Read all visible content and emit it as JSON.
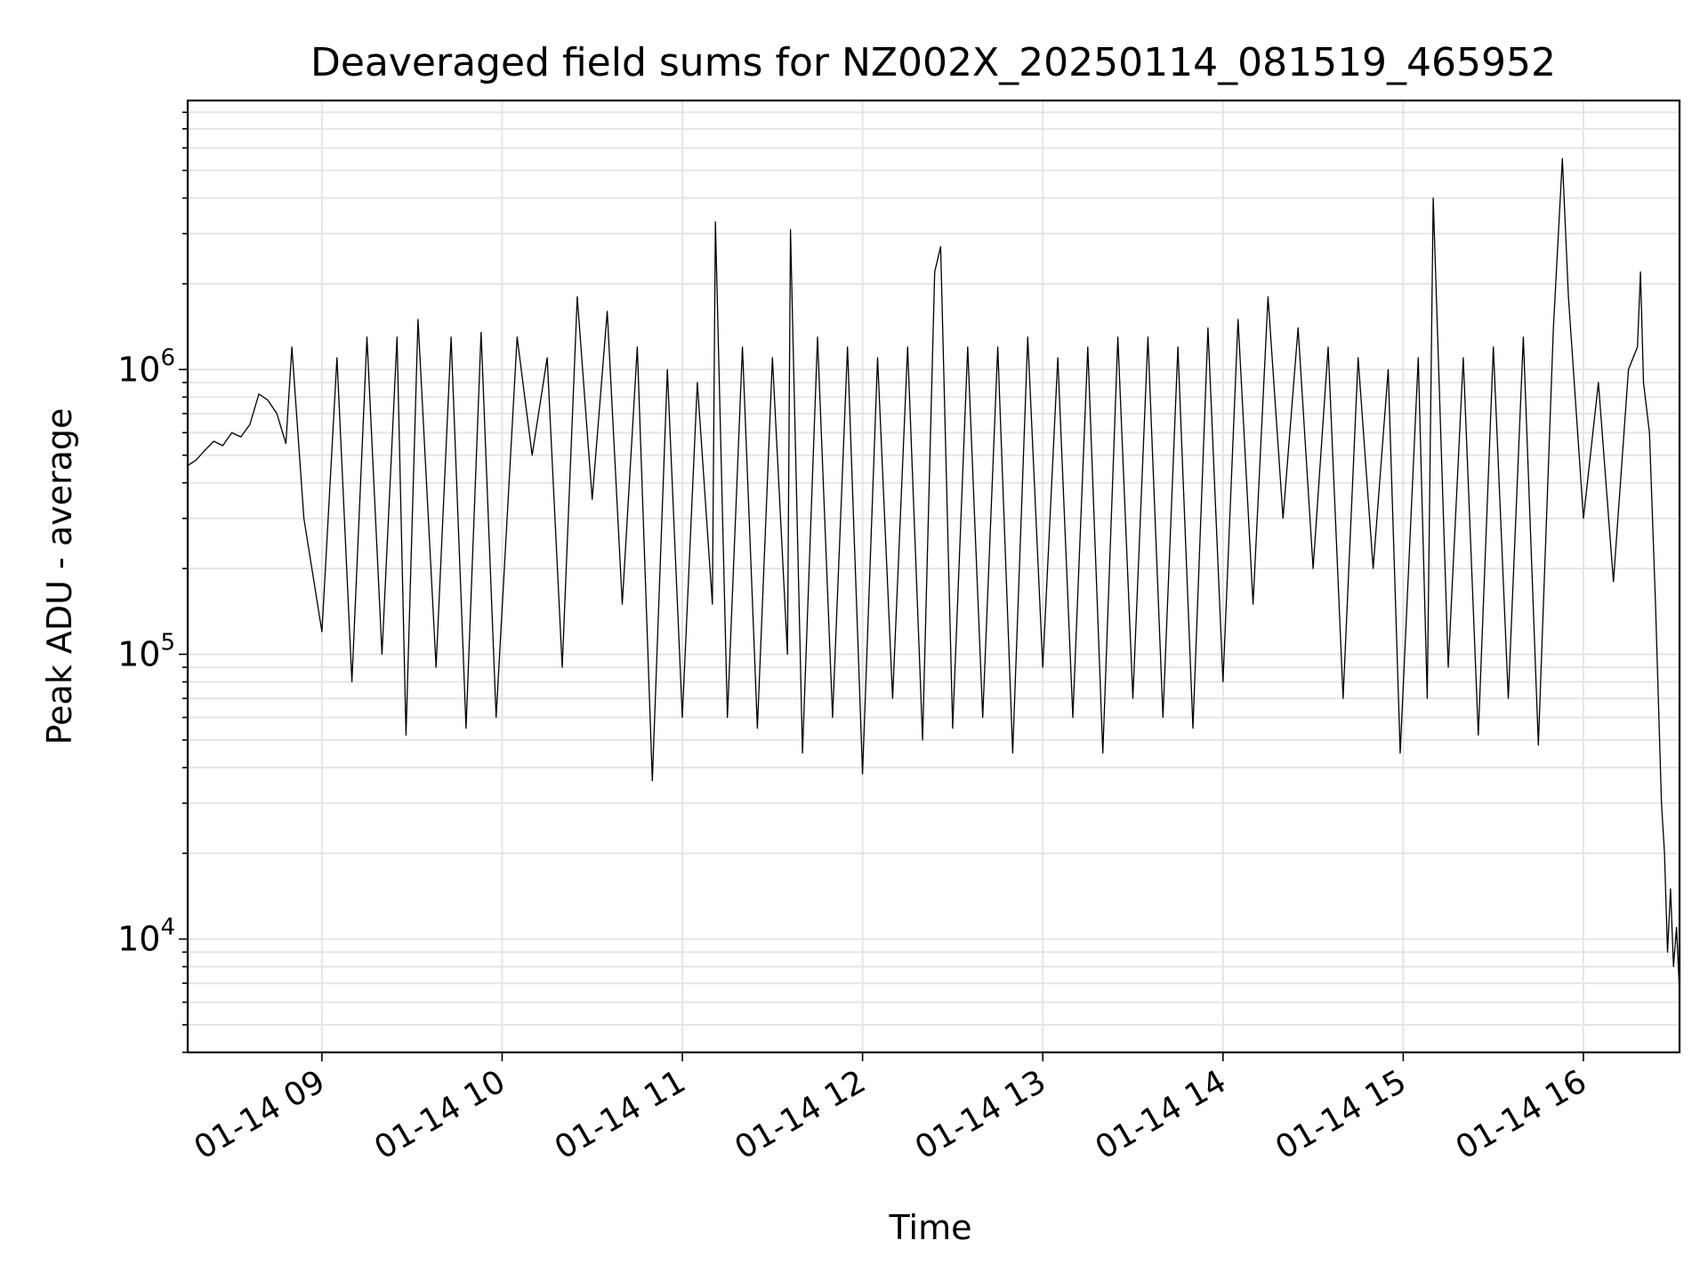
{
  "chart_data": {
    "type": "line",
    "title": "Deaveraged field sums for NZ002X_20250114_081519_465952",
    "xlabel": "Time",
    "ylabel": "Peak ADU - average",
    "yscale": "log",
    "ylim": [
      4000,
      8800000
    ],
    "xlim": [
      "2025-01-14 08:15:19",
      "2025-01-14 16:32:00"
    ],
    "grid": true,
    "line_color": "#000000",
    "grid_color": "#e5e5e5",
    "x_ticks": [
      "2025-01-14 09:00",
      "2025-01-14 10:00",
      "2025-01-14 11:00",
      "2025-01-14 12:00",
      "2025-01-14 13:00",
      "2025-01-14 14:00",
      "2025-01-14 15:00",
      "2025-01-14 16:00"
    ],
    "x_tick_labels": [
      "01-14 09",
      "01-14 10",
      "01-14 11",
      "01-14 12",
      "01-14 13",
      "01-14 14",
      "01-14 15",
      "01-14 16"
    ],
    "y_ticks": [
      10000,
      100000,
      1000000
    ],
    "y_tick_labels": [
      {
        "base": "10",
        "exp": "4"
      },
      {
        "base": "10",
        "exp": "5"
      },
      {
        "base": "10",
        "exp": "6"
      }
    ],
    "series": [
      {
        "points": [
          [
            "2025-01-14 08:15:19",
            460000
          ],
          [
            "2025-01-14 08:18",
            480000
          ],
          [
            "2025-01-14 08:21",
            520000
          ],
          [
            "2025-01-14 08:24",
            560000
          ],
          [
            "2025-01-14 08:27",
            540000
          ],
          [
            "2025-01-14 08:30",
            600000
          ],
          [
            "2025-01-14 08:33",
            580000
          ],
          [
            "2025-01-14 08:36",
            640000
          ],
          [
            "2025-01-14 08:39",
            820000
          ],
          [
            "2025-01-14 08:42",
            780000
          ],
          [
            "2025-01-14 08:45",
            700000
          ],
          [
            "2025-01-14 08:48",
            550000
          ],
          [
            "2025-01-14 08:50",
            1200000
          ],
          [
            "2025-01-14 08:54",
            300000
          ],
          [
            "2025-01-14 09:00",
            120000
          ],
          [
            "2025-01-14 09:05",
            1100000
          ],
          [
            "2025-01-14 09:10",
            80000
          ],
          [
            "2025-01-14 09:15",
            1300000
          ],
          [
            "2025-01-14 09:20",
            100000
          ],
          [
            "2025-01-14 09:25",
            1300000
          ],
          [
            "2025-01-14 09:28",
            52000
          ],
          [
            "2025-01-14 09:32",
            1500000
          ],
          [
            "2025-01-14 09:38",
            90000
          ],
          [
            "2025-01-14 09:43",
            1300000
          ],
          [
            "2025-01-14 09:48",
            55000
          ],
          [
            "2025-01-14 09:53",
            1350000
          ],
          [
            "2025-01-14 09:58",
            60000
          ],
          [
            "2025-01-14 10:05",
            1300000
          ],
          [
            "2025-01-14 10:10",
            500000
          ],
          [
            "2025-01-14 10:15",
            1100000
          ],
          [
            "2025-01-14 10:20",
            90000
          ],
          [
            "2025-01-14 10:25",
            1800000
          ],
          [
            "2025-01-14 10:30",
            350000
          ],
          [
            "2025-01-14 10:35",
            1600000
          ],
          [
            "2025-01-14 10:40",
            150000
          ],
          [
            "2025-01-14 10:45",
            1200000
          ],
          [
            "2025-01-14 10:50",
            36000
          ],
          [
            "2025-01-14 10:55",
            1000000
          ],
          [
            "2025-01-14 11:00",
            60000
          ],
          [
            "2025-01-14 11:05",
            900000
          ],
          [
            "2025-01-14 11:10",
            150000
          ],
          [
            "2025-01-14 11:11",
            3300000
          ],
          [
            "2025-01-14 11:15",
            60000
          ],
          [
            "2025-01-14 11:20",
            1200000
          ],
          [
            "2025-01-14 11:25",
            55000
          ],
          [
            "2025-01-14 11:30",
            1100000
          ],
          [
            "2025-01-14 11:35",
            100000
          ],
          [
            "2025-01-14 11:36",
            3100000
          ],
          [
            "2025-01-14 11:40",
            45000
          ],
          [
            "2025-01-14 11:45",
            1300000
          ],
          [
            "2025-01-14 11:50",
            60000
          ],
          [
            "2025-01-14 11:55",
            1200000
          ],
          [
            "2025-01-14 12:00",
            38000
          ],
          [
            "2025-01-14 12:05",
            1100000
          ],
          [
            "2025-01-14 12:10",
            70000
          ],
          [
            "2025-01-14 12:15",
            1200000
          ],
          [
            "2025-01-14 12:20",
            50000
          ],
          [
            "2025-01-14 12:24",
            2200000
          ],
          [
            "2025-01-14 12:26",
            2700000
          ],
          [
            "2025-01-14 12:30",
            55000
          ],
          [
            "2025-01-14 12:35",
            1200000
          ],
          [
            "2025-01-14 12:40",
            60000
          ],
          [
            "2025-01-14 12:45",
            1200000
          ],
          [
            "2025-01-14 12:50",
            45000
          ],
          [
            "2025-01-14 12:55",
            1300000
          ],
          [
            "2025-01-14 13:00",
            90000
          ],
          [
            "2025-01-14 13:05",
            1100000
          ],
          [
            "2025-01-14 13:10",
            60000
          ],
          [
            "2025-01-14 13:15",
            1200000
          ],
          [
            "2025-01-14 13:20",
            45000
          ],
          [
            "2025-01-14 13:25",
            1300000
          ],
          [
            "2025-01-14 13:30",
            70000
          ],
          [
            "2025-01-14 13:35",
            1300000
          ],
          [
            "2025-01-14 13:40",
            60000
          ],
          [
            "2025-01-14 13:45",
            1200000
          ],
          [
            "2025-01-14 13:50",
            55000
          ],
          [
            "2025-01-14 13:55",
            1400000
          ],
          [
            "2025-01-14 14:00",
            80000
          ],
          [
            "2025-01-14 14:05",
            1500000
          ],
          [
            "2025-01-14 14:10",
            150000
          ],
          [
            "2025-01-14 14:15",
            1800000
          ],
          [
            "2025-01-14 14:20",
            300000
          ],
          [
            "2025-01-14 14:25",
            1400000
          ],
          [
            "2025-01-14 14:30",
            200000
          ],
          [
            "2025-01-14 14:35",
            1200000
          ],
          [
            "2025-01-14 14:40",
            70000
          ],
          [
            "2025-01-14 14:45",
            1100000
          ],
          [
            "2025-01-14 14:50",
            200000
          ],
          [
            "2025-01-14 14:55",
            1000000
          ],
          [
            "2025-01-14 14:59",
            45000
          ],
          [
            "2025-01-14 15:05",
            1100000
          ],
          [
            "2025-01-14 15:08",
            70000
          ],
          [
            "2025-01-14 15:10",
            4000000
          ],
          [
            "2025-01-14 15:15",
            90000
          ],
          [
            "2025-01-14 15:20",
            1100000
          ],
          [
            "2025-01-14 15:25",
            52000
          ],
          [
            "2025-01-14 15:30",
            1200000
          ],
          [
            "2025-01-14 15:35",
            70000
          ],
          [
            "2025-01-14 15:40",
            1300000
          ],
          [
            "2025-01-14 15:45",
            48000
          ],
          [
            "2025-01-14 15:50",
            1400000
          ],
          [
            "2025-01-14 15:53",
            5500000
          ],
          [
            "2025-01-14 15:55",
            1800000
          ],
          [
            "2025-01-14 16:00",
            300000
          ],
          [
            "2025-01-14 16:05",
            900000
          ],
          [
            "2025-01-14 16:10",
            180000
          ],
          [
            "2025-01-14 16:15",
            1000000
          ],
          [
            "2025-01-14 16:18",
            1200000
          ],
          [
            "2025-01-14 16:19",
            2200000
          ],
          [
            "2025-01-14 16:20",
            900000
          ],
          [
            "2025-01-14 16:22",
            600000
          ],
          [
            "2025-01-14 16:24",
            150000
          ],
          [
            "2025-01-14 16:26",
            30000
          ],
          [
            "2025-01-14 16:27",
            20000
          ],
          [
            "2025-01-14 16:28",
            9000
          ],
          [
            "2025-01-14 16:29",
            15000
          ],
          [
            "2025-01-14 16:30",
            8000
          ],
          [
            "2025-01-14 16:31",
            11000
          ],
          [
            "2025-01-14 16:32",
            6500
          ]
        ]
      }
    ]
  }
}
